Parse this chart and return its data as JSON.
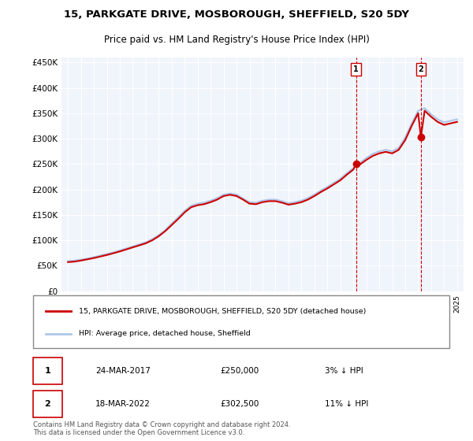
{
  "title": "15, PARKGATE DRIVE, MOSBOROUGH, SHEFFIELD, S20 5DY",
  "subtitle": "Price paid vs. HM Land Registry's House Price Index (HPI)",
  "legend_line1": "15, PARKGATE DRIVE, MOSBOROUGH, SHEFFIELD, S20 5DY (detached house)",
  "legend_line2": "HPI: Average price, detached house, Sheffield",
  "annotation1_label": "1",
  "annotation1_date": "24-MAR-2017",
  "annotation1_price": "£250,000",
  "annotation1_hpi": "3% ↓ HPI",
  "annotation2_label": "2",
  "annotation2_date": "18-MAR-2022",
  "annotation2_price": "£302,500",
  "annotation2_hpi": "11% ↓ HPI",
  "footnote": "Contains HM Land Registry data © Crown copyright and database right 2024.\nThis data is licensed under the Open Government Licence v3.0.",
  "hpi_color": "#aec6e8",
  "price_color": "#cc0000",
  "annotation_color": "#cc0000",
  "vline_color": "#cc0000",
  "background_color": "#ffffff",
  "plot_bg_color": "#f0f4fb",
  "ylim": [
    0,
    460000
  ],
  "yticks": [
    0,
    50000,
    100000,
    150000,
    200000,
    250000,
    300000,
    350000,
    400000,
    450000
  ],
  "sale1_year": 2017.22,
  "sale1_price": 250000,
  "sale2_year": 2022.21,
  "sale2_price": 302500,
  "hpi_years": [
    1995,
    1995.5,
    1996,
    1996.5,
    1997,
    1997.5,
    1998,
    1998.5,
    1999,
    1999.5,
    2000,
    2000.5,
    2001,
    2001.5,
    2002,
    2002.5,
    2003,
    2003.5,
    2004,
    2004.5,
    2005,
    2005.5,
    2006,
    2006.5,
    2007,
    2007.5,
    2008,
    2008.5,
    2009,
    2009.5,
    2010,
    2010.5,
    2011,
    2011.5,
    2012,
    2012.5,
    2013,
    2013.5,
    2014,
    2014.5,
    2015,
    2015.5,
    2016,
    2016.5,
    2017,
    2017.5,
    2018,
    2018.5,
    2019,
    2019.5,
    2020,
    2020.5,
    2021,
    2021.5,
    2022,
    2022.5,
    2023,
    2023.5,
    2024,
    2024.5,
    2025
  ],
  "hpi_values": [
    59000,
    60000,
    62000,
    64000,
    67000,
    70000,
    73000,
    76000,
    80000,
    84000,
    88000,
    92000,
    96000,
    102000,
    110000,
    120000,
    133000,
    145000,
    158000,
    168000,
    172000,
    174000,
    178000,
    183000,
    190000,
    192000,
    190000,
    182000,
    175000,
    174000,
    178000,
    180000,
    180000,
    177000,
    173000,
    175000,
    178000,
    183000,
    190000,
    198000,
    205000,
    213000,
    221000,
    232000,
    242000,
    252000,
    262000,
    270000,
    275000,
    278000,
    275000,
    282000,
    302000,
    330000,
    355000,
    360000,
    348000,
    338000,
    332000,
    335000,
    338000
  ],
  "prop_years": [
    1995,
    1995.5,
    1996,
    1996.5,
    1997,
    1997.5,
    1998,
    1998.5,
    1999,
    1999.5,
    2000,
    2000.5,
    2001,
    2001.5,
    2002,
    2002.5,
    2003,
    2003.5,
    2004,
    2004.5,
    2005,
    2005.5,
    2006,
    2006.5,
    2007,
    2007.5,
    2008,
    2008.5,
    2009,
    2009.5,
    2010,
    2010.5,
    2011,
    2011.5,
    2012,
    2012.5,
    2013,
    2013.5,
    2014,
    2014.5,
    2015,
    2015.5,
    2016,
    2016.5,
    2017,
    2017.22,
    2017.5,
    2018,
    2018.5,
    2019,
    2019.5,
    2020,
    2020.5,
    2021,
    2021.5,
    2022,
    2022.21,
    2022.5,
    2023,
    2023.5,
    2024,
    2024.5,
    2025
  ],
  "prop_values": [
    57000,
    58000,
    60000,
    62500,
    65000,
    68000,
    71000,
    74500,
    78000,
    82000,
    86000,
    90000,
    94000,
    100000,
    108000,
    118000,
    130000,
    142000,
    155000,
    165000,
    169000,
    171000,
    175000,
    180000,
    187000,
    189500,
    187000,
    180000,
    172000,
    171000,
    175000,
    177000,
    177000,
    174000,
    170000,
    172000,
    175000,
    180000,
    187000,
    195000,
    202000,
    210000,
    218000,
    229000,
    239000,
    250000,
    249000,
    258000,
    266000,
    271000,
    274000,
    271000,
    278000,
    297000,
    325000,
    350000,
    302500,
    355000,
    343000,
    333000,
    327000,
    330000,
    333000
  ]
}
